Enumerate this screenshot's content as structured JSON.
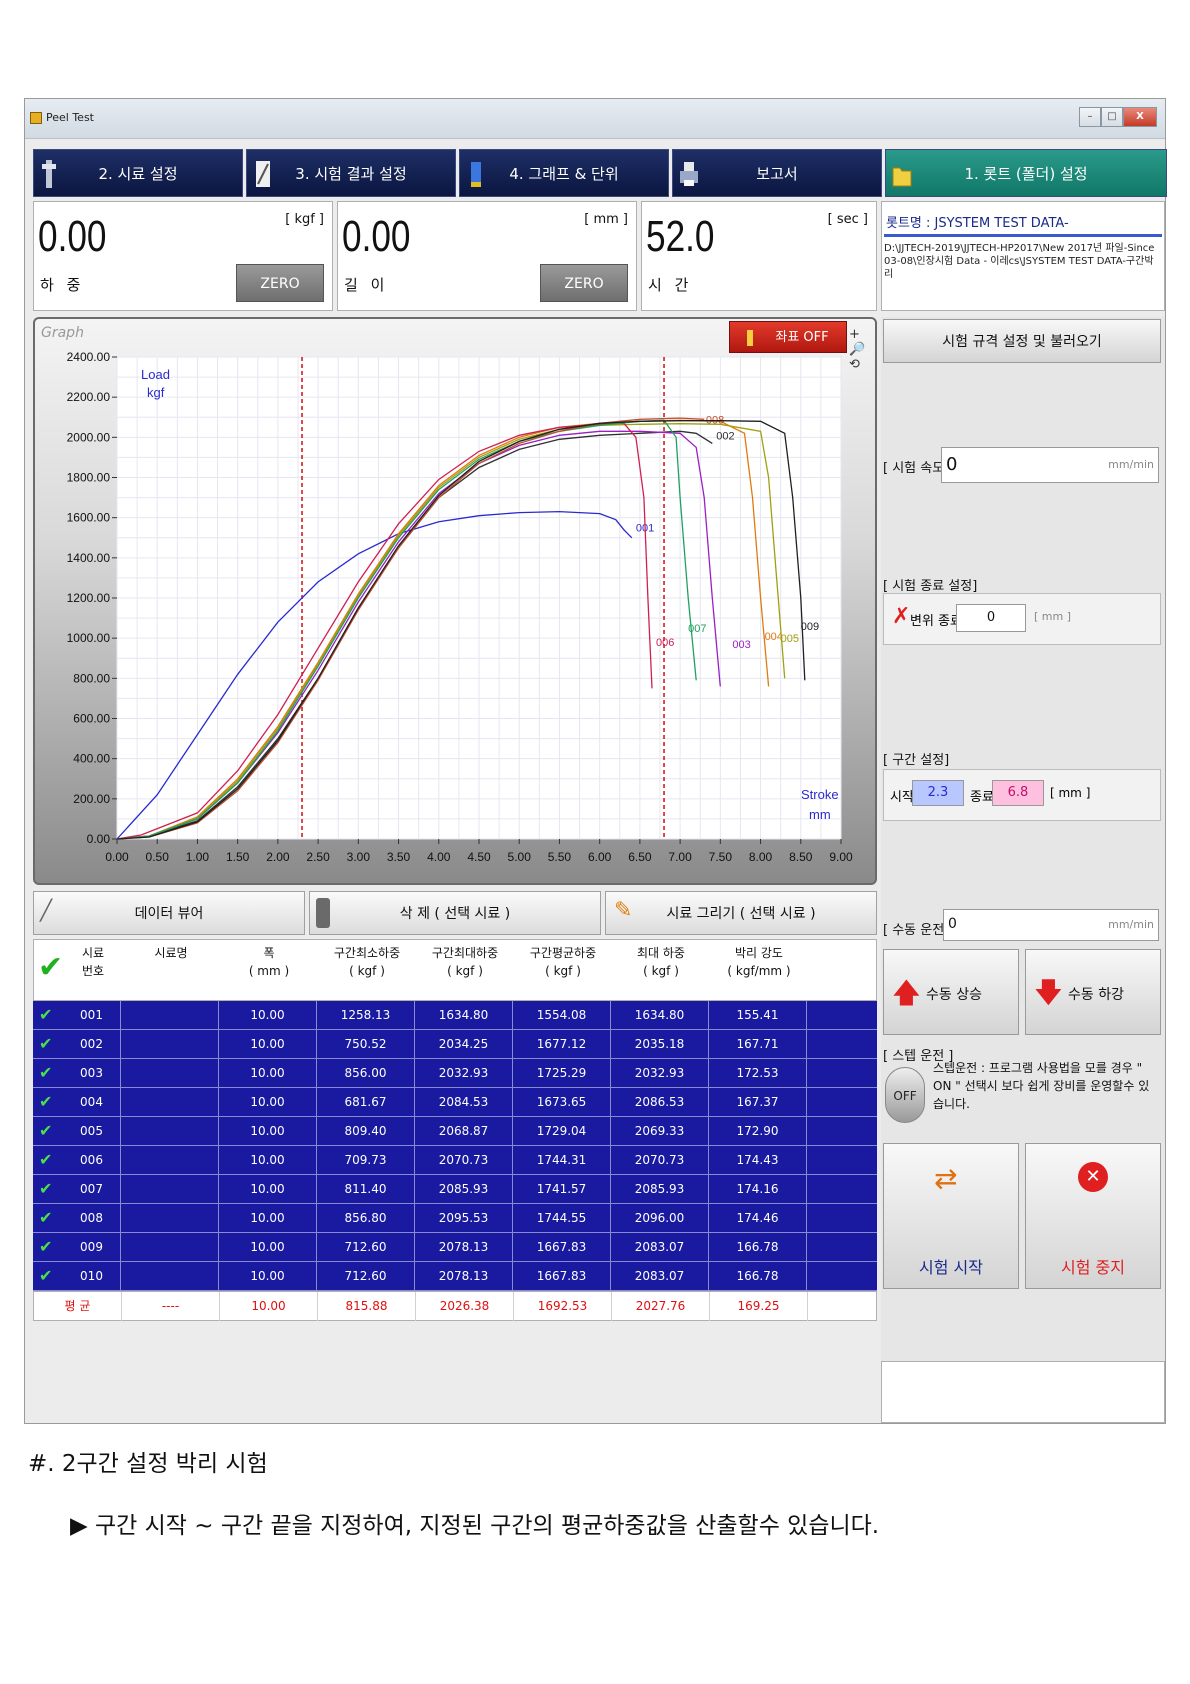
{
  "window": {
    "title": "Peel Test",
    "controls": {
      "minimize": "–",
      "maximize": "□",
      "close": "X"
    }
  },
  "tabs": [
    {
      "label": "2. 시료 설정"
    },
    {
      "label": "3. 시험 결과 설정"
    },
    {
      "label": "4. 그래프 & 단위"
    },
    {
      "label": "보고서"
    },
    {
      "label": "1. 롯트 (폴더) 설정"
    }
  ],
  "readouts": {
    "load": {
      "value": "0.00",
      "unit": "[ kgf ]",
      "label": "하 중",
      "zero": "ZERO"
    },
    "length": {
      "value": "0.00",
      "unit": "[ mm ]",
      "label": "길 이",
      "zero": "ZERO"
    },
    "time": {
      "value": "52.0",
      "unit": "[ sec ]",
      "label": "시 간"
    }
  },
  "lot": {
    "name": "롯트명 : JSYSTEM TEST DATA-",
    "path": "D:\\JJTECH-2019\\JJTECH-HP2017\\New 2017년 파일-Since 03-08\\인장시험 Data - 이레cs\\JSYSTEM TEST DATA-구간박리"
  },
  "graph": {
    "label": "Graph",
    "coord_button": "좌표 OFF",
    "zoom_tools": "+ 🔎 ⟲",
    "y_label": "Load",
    "y_unit": "kgf",
    "x_label": "Stroke",
    "x_unit": "mm"
  },
  "chart_data": {
    "type": "line",
    "xlabel": "Stroke",
    "xunit": "mm",
    "ylabel": "Load",
    "yunit": "kgf",
    "xlim": [
      0,
      9
    ],
    "ylim": [
      0,
      2400
    ],
    "x_ticks": [
      "0.00",
      "0.50",
      "1.00",
      "1.50",
      "2.00",
      "2.50",
      "3.00",
      "3.50",
      "4.00",
      "4.50",
      "5.00",
      "5.50",
      "6.00",
      "6.50",
      "7.00",
      "7.50",
      "8.00",
      "8.50",
      "9.00"
    ],
    "y_ticks": [
      "0.00",
      "200.00",
      "400.00",
      "600.00",
      "800.00",
      "1000.00",
      "1200.00",
      "1400.00",
      "1600.00",
      "1800.00",
      "2000.00",
      "2200.00",
      "2400.00"
    ],
    "grid": true,
    "section_markers": [
      2.3,
      6.8
    ],
    "series": [
      {
        "name": "001",
        "color": "#2a2ad0",
        "label_at": [
          6.45,
          1530
        ],
        "points": [
          [
            0,
            0
          ],
          [
            0.5,
            220
          ],
          [
            1,
            520
          ],
          [
            1.5,
            820
          ],
          [
            2,
            1080
          ],
          [
            2.5,
            1280
          ],
          [
            3,
            1420
          ],
          [
            3.5,
            1520
          ],
          [
            4,
            1580
          ],
          [
            4.5,
            1610
          ],
          [
            5,
            1625
          ],
          [
            5.5,
            1630
          ],
          [
            6,
            1620
          ],
          [
            6.2,
            1590
          ],
          [
            6.3,
            1540
          ],
          [
            6.4,
            1500
          ]
        ]
      },
      {
        "name": "002",
        "color": "#303030",
        "label_at": [
          7.45,
          1990
        ],
        "points": [
          [
            0,
            0
          ],
          [
            0.4,
            15
          ],
          [
            1,
            90
          ],
          [
            1.5,
            260
          ],
          [
            2,
            500
          ],
          [
            2.5,
            800
          ],
          [
            3,
            1150
          ],
          [
            3.5,
            1450
          ],
          [
            4,
            1700
          ],
          [
            4.5,
            1850
          ],
          [
            5,
            1940
          ],
          [
            5.5,
            1990
          ],
          [
            6,
            2010
          ],
          [
            6.5,
            2020
          ],
          [
            7,
            2030
          ],
          [
            7.2,
            2020
          ],
          [
            7.4,
            1970
          ]
        ]
      },
      {
        "name": "003",
        "color": "#9a20c0",
        "label_at": [
          7.65,
          950
        ],
        "points": [
          [
            0,
            0
          ],
          [
            0.4,
            15
          ],
          [
            1,
            100
          ],
          [
            1.5,
            280
          ],
          [
            2,
            530
          ],
          [
            2.5,
            840
          ],
          [
            3,
            1180
          ],
          [
            3.5,
            1480
          ],
          [
            4,
            1720
          ],
          [
            4.5,
            1870
          ],
          [
            5,
            1960
          ],
          [
            5.5,
            2010
          ],
          [
            6,
            2030
          ],
          [
            6.5,
            2030
          ],
          [
            7,
            2020
          ],
          [
            7.2,
            1950
          ],
          [
            7.3,
            1700
          ],
          [
            7.4,
            1200
          ],
          [
            7.5,
            760
          ]
        ]
      },
      {
        "name": "004",
        "color": "#e07a10",
        "label_at": [
          8.05,
          990
        ],
        "points": [
          [
            0,
            0
          ],
          [
            0.4,
            15
          ],
          [
            1,
            110
          ],
          [
            1.5,
            300
          ],
          [
            2,
            560
          ],
          [
            2.5,
            880
          ],
          [
            3,
            1220
          ],
          [
            3.5,
            1520
          ],
          [
            4,
            1760
          ],
          [
            4.5,
            1910
          ],
          [
            5,
            2000
          ],
          [
            5.5,
            2050
          ],
          [
            6,
            2070
          ],
          [
            6.5,
            2080
          ],
          [
            7,
            2085
          ],
          [
            7.5,
            2080
          ],
          [
            7.8,
            2020
          ],
          [
            7.9,
            1700
          ],
          [
            8,
            1200
          ],
          [
            8.1,
            760
          ]
        ]
      },
      {
        "name": "005",
        "color": "#a0a010",
        "label_at": [
          8.25,
          980
        ],
        "points": [
          [
            0,
            0
          ],
          [
            0.4,
            15
          ],
          [
            1,
            105
          ],
          [
            1.5,
            290
          ],
          [
            2,
            550
          ],
          [
            2.5,
            870
          ],
          [
            3,
            1210
          ],
          [
            3.5,
            1510
          ],
          [
            4,
            1750
          ],
          [
            4.5,
            1900
          ],
          [
            5,
            1990
          ],
          [
            5.5,
            2040
          ],
          [
            6,
            2060
          ],
          [
            6.5,
            2065
          ],
          [
            7,
            2068
          ],
          [
            7.5,
            2065
          ],
          [
            8,
            2030
          ],
          [
            8.1,
            1800
          ],
          [
            8.2,
            1300
          ],
          [
            8.3,
            800
          ]
        ]
      },
      {
        "name": "006",
        "color": "#d02050",
        "label_at": [
          6.7,
          960
        ],
        "points": [
          [
            0,
            0
          ],
          [
            0.3,
            20
          ],
          [
            1,
            130
          ],
          [
            1.5,
            340
          ],
          [
            2,
            620
          ],
          [
            2.5,
            950
          ],
          [
            3,
            1280
          ],
          [
            3.5,
            1570
          ],
          [
            4,
            1790
          ],
          [
            4.5,
            1930
          ],
          [
            5,
            2010
          ],
          [
            5.5,
            2050
          ],
          [
            6,
            2065
          ],
          [
            6.3,
            2070
          ],
          [
            6.45,
            2000
          ],
          [
            6.55,
            1700
          ],
          [
            6.6,
            1200
          ],
          [
            6.65,
            750
          ]
        ]
      },
      {
        "name": "007",
        "color": "#20a060",
        "label_at": [
          7.1,
          1030
        ],
        "points": [
          [
            0,
            0
          ],
          [
            0.4,
            15
          ],
          [
            1,
            100
          ],
          [
            1.5,
            280
          ],
          [
            2,
            540
          ],
          [
            2.5,
            860
          ],
          [
            3,
            1200
          ],
          [
            3.5,
            1500
          ],
          [
            4,
            1740
          ],
          [
            4.5,
            1890
          ],
          [
            5,
            1980
          ],
          [
            5.5,
            2030
          ],
          [
            6,
            2060
          ],
          [
            6.5,
            2080
          ],
          [
            6.8,
            2085
          ],
          [
            6.95,
            2000
          ],
          [
            7.0,
            1700
          ],
          [
            7.1,
            1200
          ],
          [
            7.2,
            790
          ]
        ]
      },
      {
        "name": "008",
        "color": "#c05030",
        "label_at": [
          7.32,
          2070
        ],
        "points": [
          [
            0,
            0
          ],
          [
            0.4,
            10
          ],
          [
            1,
            80
          ],
          [
            1.5,
            240
          ],
          [
            2,
            480
          ],
          [
            2.5,
            790
          ],
          [
            3,
            1140
          ],
          [
            3.5,
            1450
          ],
          [
            4,
            1700
          ],
          [
            4.5,
            1870
          ],
          [
            5,
            1970
          ],
          [
            5.5,
            2030
          ],
          [
            6,
            2070
          ],
          [
            6.5,
            2090
          ],
          [
            7,
            2096
          ],
          [
            7.3,
            2090
          ]
        ]
      },
      {
        "name": "009",
        "color": "#202020",
        "label_at": [
          8.5,
          1040
        ],
        "points": [
          [
            0,
            0
          ],
          [
            0.4,
            10
          ],
          [
            1,
            85
          ],
          [
            1.5,
            250
          ],
          [
            2,
            490
          ],
          [
            2.5,
            800
          ],
          [
            3,
            1150
          ],
          [
            3.5,
            1460
          ],
          [
            4,
            1710
          ],
          [
            4.5,
            1880
          ],
          [
            5,
            1980
          ],
          [
            5.5,
            2040
          ],
          [
            6,
            2070
          ],
          [
            6.5,
            2080
          ],
          [
            7,
            2083
          ],
          [
            7.5,
            2083
          ],
          [
            8,
            2080
          ],
          [
            8.3,
            2020
          ],
          [
            8.4,
            1700
          ],
          [
            8.5,
            1200
          ],
          [
            8.55,
            790
          ]
        ]
      }
    ]
  },
  "right_panel": {
    "load_settings": "시험 규격 설정 및 불러오기",
    "speed_label": "[ 시험 속도 ]",
    "speed_value": "0",
    "speed_unit": "mm/min",
    "end_group_title": "[ 시험 종료 설정]",
    "end_disp_label": "변위 종료",
    "end_disp_value": "0",
    "end_disp_unit": "[ mm ]",
    "section_group_title": "[ 구간 설정]",
    "section_start_label": "시작",
    "section_start_value": "2.3",
    "section_end_label": "종료",
    "section_end_value": "6.8",
    "section_unit": "[ mm ]",
    "manual_label": "[ 수동 운전 ]",
    "manual_value": "0",
    "manual_unit": "mm/min",
    "manual_up": "수동 상승",
    "manual_down": "수동 하강",
    "step_group_title": "[ 스텝 운전 ]",
    "step_toggle": "OFF",
    "step_desc": "스텝운전 : 프로그램 사용법을 모를 경우 \" ON \" 선택시 보다 쉽게 장비를 운영할수 있습니다.",
    "start_test": "시험 시작",
    "stop_test": "시험 중지"
  },
  "mid_buttons": {
    "data_view": "데이터 뷰어",
    "delete": "삭 제 ( 선택 시료 )",
    "draw": "시료 그리기 ( 선택 시료 )"
  },
  "table": {
    "headers": [
      "시료\n번호",
      "시료명",
      "폭\n( mm )",
      "구간최소하중\n( kgf )",
      "구간최대하중\n( kgf )",
      "구간평균하중\n( kgf )",
      "최대 하중\n( kgf )",
      "박리 강도\n( kgf/mm )"
    ],
    "rows": [
      [
        "001",
        "",
        "10.00",
        "1258.13",
        "1634.80",
        "1554.08",
        "1634.80",
        "155.41"
      ],
      [
        "002",
        "",
        "10.00",
        "750.52",
        "2034.25",
        "1677.12",
        "2035.18",
        "167.71"
      ],
      [
        "003",
        "",
        "10.00",
        "856.00",
        "2032.93",
        "1725.29",
        "2032.93",
        "172.53"
      ],
      [
        "004",
        "",
        "10.00",
        "681.67",
        "2084.53",
        "1673.65",
        "2086.53",
        "167.37"
      ],
      [
        "005",
        "",
        "10.00",
        "809.40",
        "2068.87",
        "1729.04",
        "2069.33",
        "172.90"
      ],
      [
        "006",
        "",
        "10.00",
        "709.73",
        "2070.73",
        "1744.31",
        "2070.73",
        "174.43"
      ],
      [
        "007",
        "",
        "10.00",
        "811.40",
        "2085.93",
        "1741.57",
        "2085.93",
        "174.16"
      ],
      [
        "008",
        "",
        "10.00",
        "856.80",
        "2095.53",
        "1744.55",
        "2096.00",
        "174.46"
      ],
      [
        "009",
        "",
        "10.00",
        "712.60",
        "2078.13",
        "1667.83",
        "2083.07",
        "166.78"
      ],
      [
        "010",
        "",
        "10.00",
        "712.60",
        "2078.13",
        "1667.83",
        "2083.07",
        "166.78"
      ]
    ],
    "average": [
      "평 균",
      "----",
      "10.00",
      "815.88",
      "2026.38",
      "1692.53",
      "2027.76",
      "169.25"
    ]
  },
  "captions": {
    "line1": "#. 2구간 설정 박리 시험",
    "line2": "▶ 구간 시작 ~ 구간 끝을 지정하여, 지정된 구간의 평균하중값을 산출할수 있습니다."
  }
}
